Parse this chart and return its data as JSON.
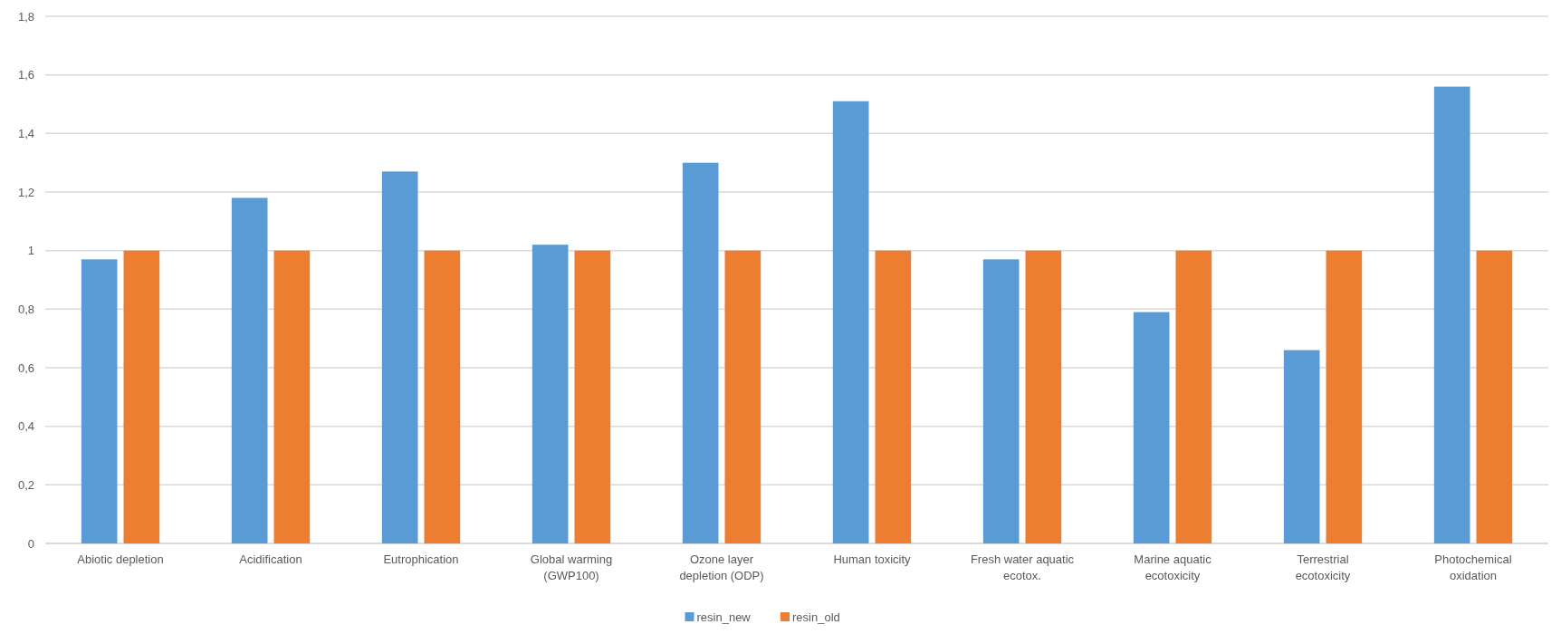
{
  "chart_data": {
    "type": "bar",
    "categories": [
      "Abiotic depletion",
      "Acidification",
      "Eutrophication",
      "Global warming (GWP100)",
      "Ozone layer depletion (ODP)",
      "Human toxicity",
      "Fresh water aquatic ecotox.",
      "Marine aquatic ecotoxicity",
      "Terrestrial ecotoxicity",
      "Photochemical oxidation"
    ],
    "series": [
      {
        "name": "resin_new",
        "color": "#5b9bd5",
        "values": [
          0.97,
          1.18,
          1.27,
          1.02,
          1.3,
          1.51,
          0.97,
          0.79,
          0.66,
          1.56
        ]
      },
      {
        "name": "resin_old",
        "color": "#ed7d31",
        "values": [
          1,
          1,
          1,
          1,
          1,
          1,
          1,
          1,
          1,
          1
        ]
      }
    ],
    "ylim": [
      0,
      1.8
    ],
    "yticks": [
      0,
      {
        "value": 0.2,
        "label": "0,2"
      },
      {
        "value": 0.4,
        "label": "0,4"
      },
      {
        "value": 0.6,
        "label": "0,6"
      },
      {
        "value": 0.8,
        "label": "0,8"
      },
      1,
      {
        "value": 1.2,
        "label": "1,2"
      },
      {
        "value": 1.4,
        "label": "1,4"
      },
      {
        "value": 1.6,
        "label": "1,6"
      },
      {
        "value": 1.8,
        "label": "1,8"
      }
    ],
    "grid": "y",
    "legend": "bottom"
  }
}
